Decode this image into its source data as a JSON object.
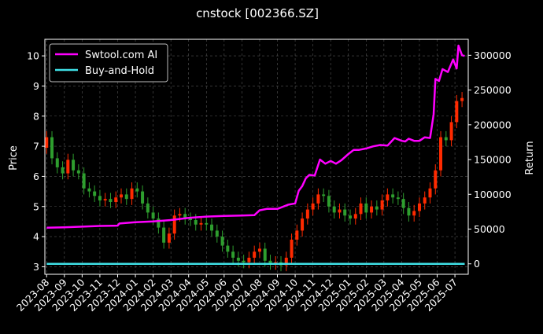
{
  "chart_data": {
    "type": "line",
    "title": "cnstock [002366.SZ]",
    "ylabel": "Price",
    "y2label": "Return",
    "ylim": [
      2.75,
      10.55
    ],
    "y2lim": [
      -15000,
      323000
    ],
    "yticks": [
      3,
      4,
      5,
      6,
      7,
      8,
      9,
      10
    ],
    "y2ticks": [
      0,
      50000,
      100000,
      150000,
      200000,
      250000,
      300000
    ],
    "y2tick_labels": [
      "0",
      "50000",
      "100000",
      "150000",
      "200000",
      "250000",
      "300000"
    ],
    "x_categories": [
      "2023-08",
      "2023-09",
      "2023-10",
      "2023-11",
      "2023-12",
      "2024-01",
      "2024-02",
      "2024-03",
      "2024-04",
      "2024-05",
      "2024-06",
      "2024-07",
      "2024-08",
      "2024-09",
      "2024-10",
      "2024-11",
      "2024-12",
      "2025-01",
      "2025-02",
      "2025-03",
      "2025-04",
      "2025-05",
      "2025-06",
      "2025-07"
    ],
    "xlim": [
      -0.1,
      23.75
    ],
    "grid": true,
    "legend_position": "top-left",
    "price_candles": {
      "note_colors": "red = up, green = down",
      "up_color": "#ff2a00",
      "down_color": "#2e9e2e",
      "x": [
        0.0,
        0.3,
        0.6,
        0.9,
        1.2,
        1.5,
        1.8,
        2.1,
        2.4,
        2.7,
        3.0,
        3.3,
        3.6,
        3.9,
        4.2,
        4.5,
        4.8,
        5.1,
        5.4,
        5.7,
        6.0,
        6.3,
        6.6,
        6.9,
        7.2,
        7.5,
        7.8,
        8.1,
        8.4,
        8.7,
        9.0,
        9.3,
        9.6,
        9.9,
        10.2,
        10.5,
        10.8,
        11.1,
        11.4,
        11.7,
        12.0,
        12.3,
        12.6,
        12.9,
        13.2,
        13.5,
        13.8,
        14.1,
        14.4,
        14.7,
        15.0,
        15.3,
        15.6,
        15.9,
        16.2,
        16.5,
        16.8,
        17.1,
        17.4,
        17.7,
        18.0,
        18.3,
        18.6,
        18.9,
        19.2,
        19.5,
        19.8,
        20.1,
        20.4,
        20.7,
        21.0,
        21.3,
        21.6,
        21.9,
        22.2,
        22.5,
        22.8,
        23.1,
        23.4
      ],
      "close": [
        7.3,
        6.6,
        6.3,
        6.1,
        6.55,
        6.2,
        6.1,
        5.6,
        5.5,
        5.35,
        5.2,
        5.25,
        5.15,
        5.3,
        5.4,
        5.25,
        5.6,
        5.5,
        5.1,
        4.8,
        4.6,
        4.3,
        3.8,
        4.1,
        4.7,
        4.75,
        4.6,
        4.55,
        4.4,
        4.45,
        4.4,
        4.2,
        4.0,
        3.7,
        3.5,
        3.3,
        3.2,
        3.15,
        3.3,
        3.5,
        3.6,
        3.2,
        3.1,
        3.15,
        3.05,
        3.3,
        3.9,
        4.2,
        4.6,
        4.9,
        5.1,
        5.4,
        5.35,
        5.0,
        4.8,
        4.9,
        4.7,
        4.6,
        4.75,
        5.1,
        4.8,
        5.0,
        4.9,
        5.2,
        5.4,
        5.3,
        5.25,
        4.95,
        4.7,
        4.85,
        5.1,
        5.3,
        5.6,
        6.2,
        7.3,
        7.2,
        7.8,
        8.5,
        8.6
      ]
    },
    "series": [
      {
        "name": "Swtool.com AI",
        "color": "#ff00ff",
        "axis": "right",
        "x": [
          0.0,
          1.0,
          2.0,
          3.0,
          4.0,
          4.1,
          5.0,
          6.0,
          7.0,
          8.0,
          9.0,
          10.0,
          11.0,
          11.7,
          12.0,
          12.4,
          13.0,
          13.3,
          13.6,
          14.0,
          14.2,
          14.4,
          14.6,
          14.8,
          15.1,
          15.4,
          15.7,
          16.0,
          16.3,
          16.6,
          17.0,
          17.3,
          17.6,
          18.0,
          18.4,
          18.8,
          19.2,
          19.6,
          20.0,
          20.2,
          20.4,
          20.7,
          21.0,
          21.3,
          21.6,
          21.8,
          21.9,
          22.1,
          22.3,
          22.6,
          22.9,
          23.1,
          23.2,
          23.4,
          23.55
        ],
        "values": [
          52000,
          52500,
          53500,
          54500,
          55000,
          58000,
          60000,
          61000,
          63000,
          66000,
          68000,
          69000,
          69500,
          70000,
          77000,
          79000,
          79000,
          82000,
          85000,
          87000,
          105000,
          112000,
          123000,
          128000,
          127000,
          150000,
          144000,
          148000,
          144000,
          149000,
          158000,
          164000,
          164000,
          166000,
          169000,
          171000,
          170000,
          181000,
          177000,
          176000,
          180000,
          177000,
          177000,
          182000,
          181000,
          215000,
          266000,
          263000,
          280000,
          276000,
          294000,
          281000,
          314000,
          300000,
          299000
        ]
      },
      {
        "name": "Buy-and-Hold",
        "color": "#3fe0e6",
        "axis": "right",
        "x": [
          0.0,
          23.55
        ],
        "values": [
          0,
          0
        ]
      }
    ]
  }
}
